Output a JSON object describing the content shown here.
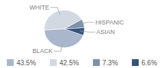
{
  "chart_data": {
    "type": "pie",
    "categories": [
      "BLACK",
      "WHITE",
      "HISPANIC",
      "ASIAN"
    ],
    "values": [
      43.5,
      42.5,
      7.3,
      6.6
    ],
    "value_labels": [
      "43.5%",
      "42.5%",
      "7.3%",
      "6.6%"
    ],
    "colors": [
      "#a9b6cb",
      "#d3d9e3",
      "#7e91ab",
      "#34547c"
    ],
    "legend": "bottom"
  }
}
